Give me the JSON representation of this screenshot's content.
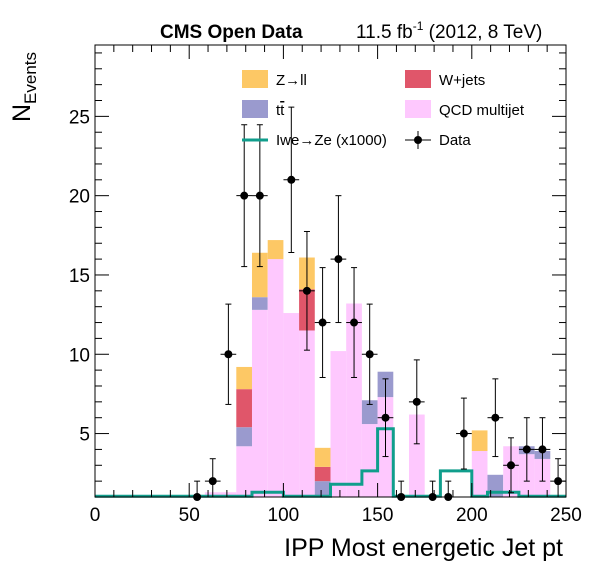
{
  "header": {
    "experiment": "CMS Open Data",
    "lumi_value": "11.5 fb",
    "lumi_exp": "-1",
    "lumi_rest": " (2012, 8 TeV)"
  },
  "colors": {
    "zll": "#fdc865",
    "wjets": "#e0566a",
    "ttbar": "#9a9ace",
    "qcd": "#fec8fe",
    "signal": "#109e8c",
    "data": "#000000"
  },
  "chart_data": {
    "type": "stacked-histogram",
    "xlabel": "IPP Most energetic Jet pt",
    "ylabel_main": "N",
    "ylabel_sub": "Events",
    "xlim": [
      0,
      250
    ],
    "ylim": [
      1,
      29.5
    ],
    "x_ticks": [
      0,
      50,
      100,
      150,
      200,
      250
    ],
    "y_ticks": [
      5,
      10,
      15,
      20,
      25
    ],
    "bin_width": 8.33,
    "bins_lo": [
      0,
      8.33,
      16.67,
      25,
      33.33,
      41.67,
      50,
      58.33,
      66.67,
      75,
      83.33,
      91.67,
      100,
      108.33,
      116.67,
      125,
      133.33,
      141.67,
      150,
      158.33,
      166.67,
      175,
      183.33,
      191.67,
      200,
      208.33,
      216.67,
      225,
      233.33,
      241.67
    ],
    "stack": [
      {
        "name": "QCD multijet",
        "values": [
          0,
          0,
          0,
          0,
          0,
          0,
          0,
          0.3,
          0.3,
          3.2,
          11.8,
          15.0,
          11.6,
          10.5,
          0,
          9.2,
          12.2,
          4.6,
          6.3,
          0,
          5.2,
          0,
          0,
          0,
          2.9,
          0,
          3.2,
          2.7,
          2.4,
          0
        ]
      },
      {
        "name": "t#bar{t}",
        "values": [
          0,
          0,
          0,
          0,
          0,
          0,
          0,
          0,
          0,
          1.2,
          0.8,
          0,
          0,
          0,
          1.0,
          0,
          0,
          1.5,
          1.6,
          0,
          0,
          0,
          0,
          0,
          0,
          1.4,
          0,
          0.5,
          0.5,
          0
        ]
      },
      {
        "name": "W+jets",
        "values": [
          0,
          0,
          0,
          0,
          0,
          0,
          0,
          0,
          0,
          2.4,
          0,
          0,
          0,
          2.6,
          0.9,
          0,
          0,
          0,
          0,
          0,
          0,
          0,
          0,
          0,
          0,
          0,
          0,
          0,
          0,
          0
        ]
      },
      {
        "name": "Z→ll",
        "values": [
          0,
          0,
          0,
          0,
          0,
          0,
          0,
          0,
          0,
          1.4,
          2.8,
          1.2,
          0,
          2.0,
          1.2,
          0,
          0,
          0,
          0,
          0,
          0,
          0,
          0,
          0,
          1.3,
          0,
          0,
          0,
          0,
          0
        ]
      }
    ],
    "signal": {
      "name": "Iwe→Ze (x1000)",
      "values": [
        1.05,
        1.05,
        1.05,
        1.05,
        1.05,
        1.05,
        1.05,
        1.05,
        1.05,
        1.05,
        1.3,
        1.3,
        1.05,
        1.05,
        1.05,
        1.8,
        1.8,
        2.65,
        5.3,
        1.05,
        1.05,
        1.05,
        2.65,
        2.65,
        1.05,
        1.3,
        1.3,
        1.05,
        1.05,
        1.05
      ]
    },
    "data_series": {
      "name": "Data",
      "points": [
        {
          "x": 54.2,
          "y": 1
        },
        {
          "x": 62.5,
          "y": 2
        },
        {
          "x": 70.8,
          "y": 10
        },
        {
          "x": 79.2,
          "y": 20
        },
        {
          "x": 87.5,
          "y": 20
        },
        {
          "x": 104.2,
          "y": 21
        },
        {
          "x": 112.5,
          "y": 14
        },
        {
          "x": 120.8,
          "y": 12
        },
        {
          "x": 129.2,
          "y": 16
        },
        {
          "x": 137.5,
          "y": 12
        },
        {
          "x": 145.8,
          "y": 10
        },
        {
          "x": 154.2,
          "y": 6
        },
        {
          "x": 162.5,
          "y": 1
        },
        {
          "x": 170.8,
          "y": 7
        },
        {
          "x": 179.2,
          "y": 1
        },
        {
          "x": 187.5,
          "y": 1
        },
        {
          "x": 195.8,
          "y": 5
        },
        {
          "x": 212.5,
          "y": 6
        },
        {
          "x": 220.8,
          "y": 3
        },
        {
          "x": 229.2,
          "y": 4
        },
        {
          "x": 237.5,
          "y": 4
        },
        {
          "x": 245.8,
          "y": 2
        }
      ]
    },
    "legend": {
      "placement": "top-right",
      "entries": [
        {
          "label": "Z→ll",
          "kind": "fill",
          "color_key": "zll"
        },
        {
          "label": "W+jets",
          "kind": "fill",
          "color_key": "wjets"
        },
        {
          "label": "t",
          "label_bar": "t",
          "kind": "fill",
          "color_key": "ttbar"
        },
        {
          "label": "QCD multijet",
          "kind": "fill",
          "color_key": "qcd"
        },
        {
          "label": "Iwe→Ze (x1000)",
          "kind": "line",
          "color_key": "signal"
        },
        {
          "label": "Data",
          "kind": "marker",
          "color_key": "data"
        }
      ]
    }
  }
}
